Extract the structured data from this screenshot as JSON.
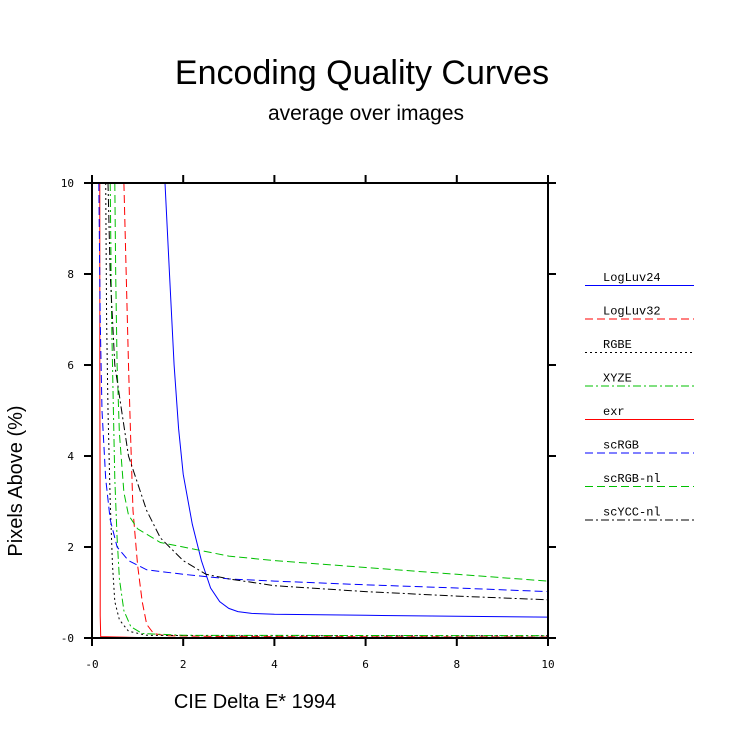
{
  "chart_data": {
    "type": "line",
    "title": "Encoding Quality Curves",
    "subtitle": "average over images",
    "xlabel": "CIE Delta E* 1994",
    "ylabel": "Pixels Above (%)",
    "xlim": [
      0,
      10
    ],
    "ylim": [
      0,
      10
    ],
    "x_ticks": [
      0,
      2,
      4,
      6,
      8,
      10
    ],
    "y_ticks": [
      0,
      2,
      4,
      6,
      8,
      10
    ],
    "x_tick_labels": [
      "0",
      "2",
      "4",
      "6",
      "8",
      "10"
    ],
    "y_tick_labels": [
      "0",
      "2",
      "4",
      "6",
      "8",
      "10"
    ],
    "legend_position": "right",
    "grid": false,
    "series": [
      {
        "name": "LogLuv24",
        "color": "#0000ff",
        "dash": "solid",
        "points": [
          [
            1.6,
            10
          ],
          [
            1.7,
            8
          ],
          [
            1.8,
            6
          ],
          [
            1.9,
            4.6
          ],
          [
            2.0,
            3.6
          ],
          [
            2.2,
            2.5
          ],
          [
            2.4,
            1.7
          ],
          [
            2.6,
            1.1
          ],
          [
            2.8,
            0.8
          ],
          [
            3.0,
            0.65
          ],
          [
            3.2,
            0.58
          ],
          [
            3.5,
            0.54
          ],
          [
            4,
            0.52
          ],
          [
            6,
            0.5
          ],
          [
            8,
            0.48
          ],
          [
            10,
            0.46
          ]
        ]
      },
      {
        "name": "LogLuv32",
        "color": "#ff0000",
        "dash": "dashed",
        "points": [
          [
            0.7,
            10
          ],
          [
            0.75,
            8
          ],
          [
            0.8,
            6
          ],
          [
            0.85,
            4.3
          ],
          [
            0.9,
            2.8
          ],
          [
            1.0,
            1.6
          ],
          [
            1.1,
            0.8
          ],
          [
            1.2,
            0.3
          ],
          [
            1.35,
            0.1
          ],
          [
            1.6,
            0.05
          ],
          [
            3,
            0.03
          ],
          [
            10,
            0.02
          ]
        ]
      },
      {
        "name": "RGBE",
        "color": "#000000",
        "dash": "dotted",
        "points": [
          [
            0.3,
            10
          ],
          [
            0.32,
            7
          ],
          [
            0.35,
            5
          ],
          [
            0.4,
            3
          ],
          [
            0.45,
            1.6
          ],
          [
            0.5,
            0.8
          ],
          [
            0.6,
            0.4
          ],
          [
            0.8,
            0.15
          ],
          [
            1.2,
            0.06
          ],
          [
            3,
            0.05
          ],
          [
            10,
            0.05
          ]
        ]
      },
      {
        "name": "XYZE",
        "color": "#00c000",
        "dash": "dashdot",
        "points": [
          [
            0.4,
            10
          ],
          [
            0.43,
            7
          ],
          [
            0.47,
            5
          ],
          [
            0.5,
            3.5
          ],
          [
            0.55,
            2.2
          ],
          [
            0.6,
            1.3
          ],
          [
            0.7,
            0.6
          ],
          [
            0.85,
            0.25
          ],
          [
            1.1,
            0.1
          ],
          [
            2,
            0.06
          ],
          [
            10,
            0.05
          ]
        ]
      },
      {
        "name": "exr",
        "color": "#ff0000",
        "dash": "solid",
        "points": [
          [
            0.17,
            10
          ],
          [
            0.17,
            6
          ],
          [
            0.18,
            2
          ],
          [
            0.18,
            0.5
          ],
          [
            0.19,
            0.03
          ],
          [
            1,
            0.01
          ],
          [
            10,
            0.01
          ]
        ]
      },
      {
        "name": "scRGB",
        "color": "#0000ff",
        "dash": "dashed",
        "points": [
          [
            0.15,
            10
          ],
          [
            0.18,
            7
          ],
          [
            0.22,
            5
          ],
          [
            0.3,
            3.5
          ],
          [
            0.4,
            2.6
          ],
          [
            0.55,
            2.0
          ],
          [
            0.8,
            1.7
          ],
          [
            1.2,
            1.5
          ],
          [
            2,
            1.4
          ],
          [
            3,
            1.3
          ],
          [
            4,
            1.25
          ],
          [
            6,
            1.17
          ],
          [
            8,
            1.1
          ],
          [
            10,
            1.02
          ]
        ]
      },
      {
        "name": "scRGB-nl",
        "color": "#00c000",
        "dash": "dashed",
        "points": [
          [
            0.5,
            10
          ],
          [
            0.52,
            8
          ],
          [
            0.55,
            6
          ],
          [
            0.6,
            4.5
          ],
          [
            0.7,
            3.2
          ],
          [
            0.8,
            2.7
          ],
          [
            1.0,
            2.4
          ],
          [
            1.5,
            2.1
          ],
          [
            2,
            2.0
          ],
          [
            3,
            1.8
          ],
          [
            4,
            1.7
          ],
          [
            6,
            1.55
          ],
          [
            8,
            1.4
          ],
          [
            10,
            1.25
          ]
        ]
      },
      {
        "name": "scYCC-nl",
        "color": "#000000",
        "dash": "dashdot",
        "points": [
          [
            0.35,
            10
          ],
          [
            0.4,
            8
          ],
          [
            0.5,
            6
          ],
          [
            0.65,
            5
          ],
          [
            0.8,
            4
          ],
          [
            1.0,
            3.4
          ],
          [
            1.2,
            2.8
          ],
          [
            1.5,
            2.2
          ],
          [
            2,
            1.7
          ],
          [
            2.5,
            1.4
          ],
          [
            3,
            1.3
          ],
          [
            4,
            1.15
          ],
          [
            6,
            1.02
          ],
          [
            8,
            0.92
          ],
          [
            10,
            0.84
          ]
        ]
      }
    ]
  }
}
